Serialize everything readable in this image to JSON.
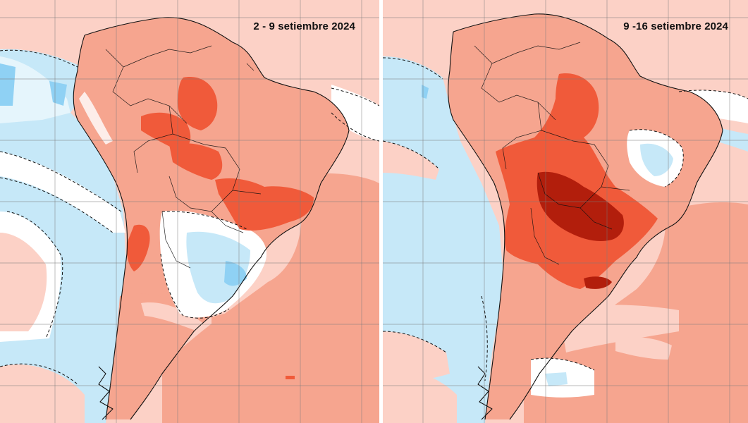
{
  "map": {
    "panels": [
      {
        "title": "2 - 9 setiembre 2024"
      },
      {
        "title": "9 -16 setiembre 2024"
      }
    ],
    "colors": {
      "very_light_pink": "#fcd1c6",
      "light_pink": "#f6a58f",
      "salmon": "#f08a71",
      "orange_red": "#f05a3a",
      "dark_red": "#b21e0c",
      "white_band": "#ffffff",
      "light_blue": "#c6e8f8",
      "blue": "#8fd1f4"
    }
  }
}
